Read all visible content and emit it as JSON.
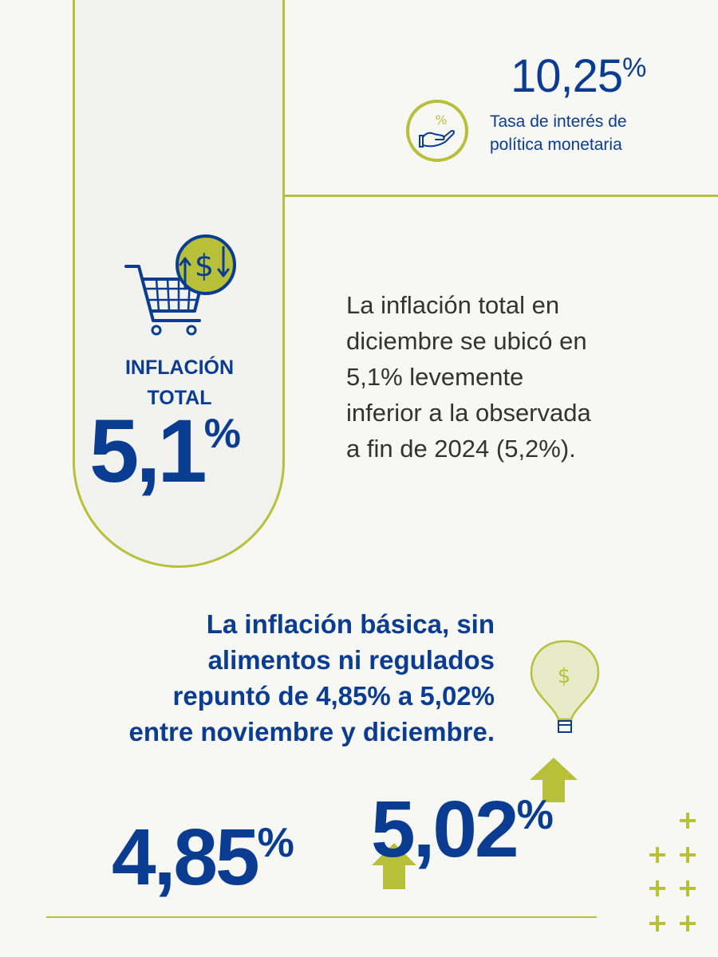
{
  "policy_rate": {
    "value": "10,25",
    "unit": "%",
    "label_line1": "Tasa de interés de",
    "label_line2": "política monetaria",
    "icon": "hand-percent-icon"
  },
  "total_inflation": {
    "label_line1": "INFLACIÓN",
    "label_line2": "TOTAL",
    "value": "5,1",
    "unit": "%",
    "icon": "shopping-cart-dollar-icon"
  },
  "description": {
    "line1": "La inflación total en",
    "line2": "diciembre se ubicó en",
    "line3": "5,1% levemente",
    "line4": "inferior a la observada",
    "line5": "a fin de 2024 (5,2%)."
  },
  "core_inflation": {
    "line1": "La inflación básica, sin",
    "line2": "alimentos ni regulados",
    "line3": "repuntó de 4,85% a 5,02%",
    "line4": "entre noviembre y diciembre.",
    "from_value": "4,85",
    "to_value": "5,02",
    "unit": "%",
    "icon": "balloon-dollar-icon"
  },
  "colors": {
    "navy": "#0a3d91",
    "lime": "#b8c03a",
    "background": "#f7f7f4"
  }
}
